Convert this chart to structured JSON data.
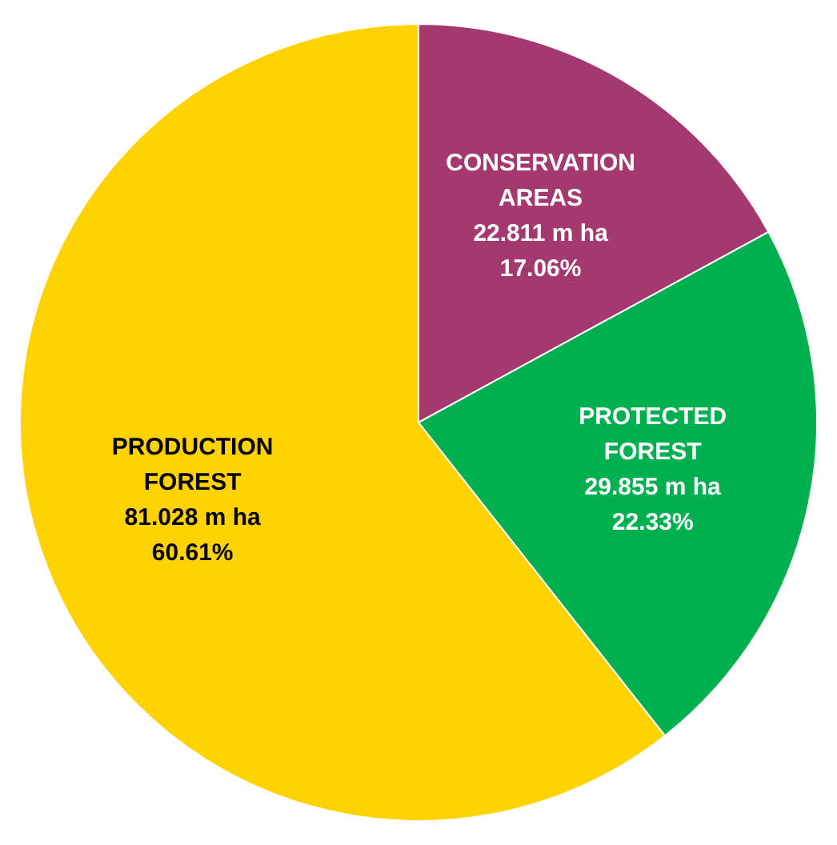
{
  "chart_data": {
    "type": "pie",
    "categories": [
      "CONSERVATION AREAS",
      "PROTECTED FOREST",
      "PRODUCTION FOREST"
    ],
    "values": [
      22.811,
      29.855,
      81.028
    ],
    "colors": [
      "#a3396f",
      "#00b050",
      "#ffd200"
    ],
    "value_labels": [
      "22.811 m ha\n17.06%",
      "29.855 m ha\n22.33%",
      "81.028 m ha\n60.61%"
    ],
    "legend": false
  }
}
